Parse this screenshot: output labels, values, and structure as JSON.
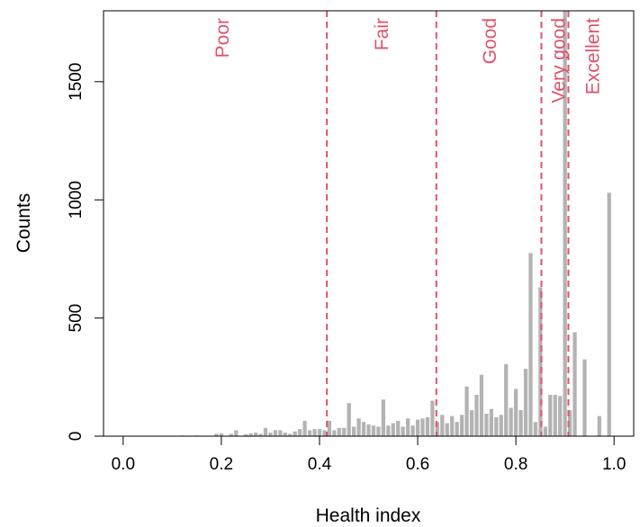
{
  "chart_data": {
    "type": "bar",
    "subtype": "histogram",
    "title": "",
    "xlabel": "Health index",
    "ylabel": "Counts",
    "xlim": [
      -0.04,
      1.04
    ],
    "ylim": [
      0,
      1800
    ],
    "x_ticks": [
      0.0,
      0.2,
      0.4,
      0.6,
      0.8,
      1.0
    ],
    "x_tick_labels": [
      "0.0",
      "0.2",
      "0.4",
      "0.6",
      "0.8",
      "1.0"
    ],
    "y_ticks": [
      0,
      500,
      1000,
      1500
    ],
    "y_tick_labels": [
      "0",
      "500",
      "1000",
      "1500"
    ],
    "bin_width": 0.01,
    "series": [
      {
        "color": "#b3b3b3",
        "bins": [
          {
            "x": 0.06,
            "count": 2
          },
          {
            "x": 0.08,
            "count": 2
          },
          {
            "x": 0.1,
            "count": 2
          },
          {
            "x": 0.12,
            "count": 3
          },
          {
            "x": 0.15,
            "count": 3
          },
          {
            "x": 0.19,
            "count": 10
          },
          {
            "x": 0.2,
            "count": 12
          },
          {
            "x": 0.22,
            "count": 10
          },
          {
            "x": 0.23,
            "count": 25
          },
          {
            "x": 0.25,
            "count": 8
          },
          {
            "x": 0.26,
            "count": 12
          },
          {
            "x": 0.27,
            "count": 15
          },
          {
            "x": 0.28,
            "count": 10
          },
          {
            "x": 0.29,
            "count": 35
          },
          {
            "x": 0.3,
            "count": 15
          },
          {
            "x": 0.31,
            "count": 25
          },
          {
            "x": 0.32,
            "count": 25
          },
          {
            "x": 0.33,
            "count": 15
          },
          {
            "x": 0.34,
            "count": 10
          },
          {
            "x": 0.35,
            "count": 20
          },
          {
            "x": 0.36,
            "count": 30
          },
          {
            "x": 0.37,
            "count": 65
          },
          {
            "x": 0.38,
            "count": 25
          },
          {
            "x": 0.39,
            "count": 30
          },
          {
            "x": 0.4,
            "count": 30
          },
          {
            "x": 0.41,
            "count": 25
          },
          {
            "x": 0.42,
            "count": 65
          },
          {
            "x": 0.43,
            "count": 25
          },
          {
            "x": 0.44,
            "count": 35
          },
          {
            "x": 0.45,
            "count": 35
          },
          {
            "x": 0.46,
            "count": 140
          },
          {
            "x": 0.47,
            "count": 40
          },
          {
            "x": 0.48,
            "count": 75
          },
          {
            "x": 0.49,
            "count": 60
          },
          {
            "x": 0.5,
            "count": 50
          },
          {
            "x": 0.51,
            "count": 45
          },
          {
            "x": 0.52,
            "count": 40
          },
          {
            "x": 0.53,
            "count": 155
          },
          {
            "x": 0.54,
            "count": 45
          },
          {
            "x": 0.55,
            "count": 55
          },
          {
            "x": 0.56,
            "count": 65
          },
          {
            "x": 0.57,
            "count": 40
          },
          {
            "x": 0.58,
            "count": 75
          },
          {
            "x": 0.59,
            "count": 45
          },
          {
            "x": 0.6,
            "count": 70
          },
          {
            "x": 0.61,
            "count": 75
          },
          {
            "x": 0.62,
            "count": 80
          },
          {
            "x": 0.63,
            "count": 150
          },
          {
            "x": 0.64,
            "count": 60
          },
          {
            "x": 0.65,
            "count": 90
          },
          {
            "x": 0.66,
            "count": 55
          },
          {
            "x": 0.67,
            "count": 85
          },
          {
            "x": 0.68,
            "count": 60
          },
          {
            "x": 0.69,
            "count": 90
          },
          {
            "x": 0.7,
            "count": 210
          },
          {
            "x": 0.71,
            "count": 110
          },
          {
            "x": 0.72,
            "count": 175
          },
          {
            "x": 0.73,
            "count": 260
          },
          {
            "x": 0.74,
            "count": 95
          },
          {
            "x": 0.75,
            "count": 115
          },
          {
            "x": 0.76,
            "count": 80
          },
          {
            "x": 0.77,
            "count": 90
          },
          {
            "x": 0.78,
            "count": 305
          },
          {
            "x": 0.79,
            "count": 120
          },
          {
            "x": 0.8,
            "count": 200
          },
          {
            "x": 0.81,
            "count": 110
          },
          {
            "x": 0.82,
            "count": 285
          },
          {
            "x": 0.83,
            "count": 775
          },
          {
            "x": 0.84,
            "count": 60
          },
          {
            "x": 0.85,
            "count": 630
          },
          {
            "x": 0.86,
            "count": 40
          },
          {
            "x": 0.87,
            "count": 175
          },
          {
            "x": 0.88,
            "count": 175
          },
          {
            "x": 0.89,
            "count": 170
          },
          {
            "x": 0.9,
            "count": 1800
          },
          {
            "x": 0.91,
            "count": 110
          },
          {
            "x": 0.92,
            "count": 440
          },
          {
            "x": 0.94,
            "count": 325
          },
          {
            "x": 0.97,
            "count": 85
          },
          {
            "x": 0.99,
            "count": 1030
          }
        ]
      }
    ],
    "cutoffs": {
      "color": "#df536b",
      "lines": [
        0.415,
        0.638,
        0.852,
        0.907
      ],
      "labels": [
        {
          "text": "Poor",
          "x": 0.2
        },
        {
          "text": "Fair",
          "x": 0.525
        },
        {
          "text": "Good",
          "x": 0.745
        },
        {
          "text": "Very good",
          "x": 0.885
        },
        {
          "text": "Excellent",
          "x": 0.955
        }
      ]
    },
    "grid": false,
    "legend": "none"
  }
}
